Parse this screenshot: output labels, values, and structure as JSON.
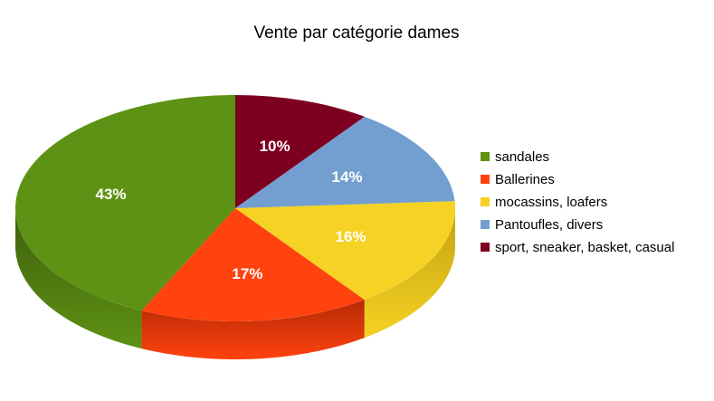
{
  "chart_data": {
    "type": "pie",
    "title": "Vente par catégorie dames",
    "legend_position": "right",
    "slices": [
      {
        "name": "sandales",
        "value": 43,
        "label": "43%",
        "color": "#5e9214",
        "side_color": "#3d5f0c"
      },
      {
        "name": "Ballerines",
        "value": 17,
        "label": "17%",
        "color": "#ff420e",
        "side_color": "#b52a05"
      },
      {
        "name": "mocassins, loafers",
        "value": 16,
        "label": "16%",
        "color": "#f5d223",
        "side_color": "#c2a212"
      },
      {
        "name": "Pantoufles, divers",
        "value": 14,
        "label": "14%",
        "color": "#729fcf",
        "side_color": "#4a78a8"
      },
      {
        "name": "sport, sneaker, basket, casual",
        "value": 10,
        "label": "10%",
        "color": "#7e0021",
        "side_color": "#500014"
      }
    ]
  }
}
